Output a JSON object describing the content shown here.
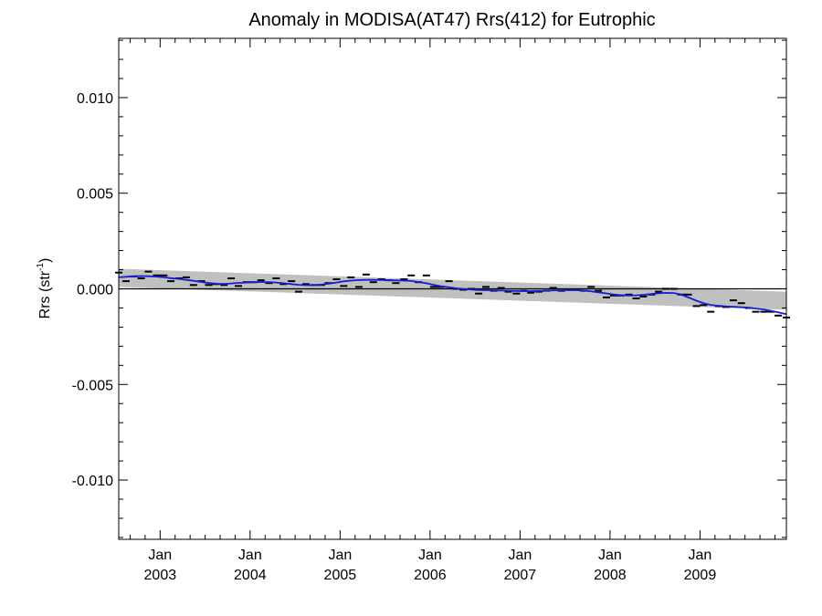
{
  "chart_data": {
    "type": "line",
    "title": "Anomaly in MODISA(AT47) Rrs(412) for Eutrophic",
    "ylabel": {
      "text": "Rrs (str",
      "superscript": "-1",
      "close": ")"
    },
    "xlabel": "",
    "xlim": [
      2002.54,
      2009.96
    ],
    "ylim": [
      -0.0131,
      0.0131
    ],
    "yticks": [
      {
        "value": 0.01,
        "label": "0.010"
      },
      {
        "value": 0.005,
        "label": "0.005"
      },
      {
        "value": 0.0,
        "label": "0.000"
      },
      {
        "value": -0.005,
        "label": "-0.005"
      },
      {
        "value": -0.01,
        "label": "-0.010"
      }
    ],
    "xticks": [
      {
        "value": 2003.0,
        "month": "Jan",
        "year": "2003"
      },
      {
        "value": 2004.0,
        "month": "Jan",
        "year": "2004"
      },
      {
        "value": 2005.0,
        "month": "Jan",
        "year": "2005"
      },
      {
        "value": 2006.0,
        "month": "Jan",
        "year": "2006"
      },
      {
        "value": 2007.0,
        "month": "Jan",
        "year": "2007"
      },
      {
        "value": 2008.0,
        "month": "Jan",
        "year": "2008"
      },
      {
        "value": 2009.0,
        "month": "Jan",
        "year": "2009"
      }
    ],
    "reference_line": 0.0,
    "series": [
      {
        "style": "monthly-markers",
        "color": "#000000",
        "points": [
          [
            2002.54,
            0.00085
          ],
          [
            2002.62,
            0.0004
          ],
          [
            2002.71,
            0.00065
          ],
          [
            2002.79,
            0.00055
          ],
          [
            2002.87,
            0.0009
          ],
          [
            2002.96,
            0.0007
          ],
          [
            2003.04,
            0.0007
          ],
          [
            2003.12,
            0.0004
          ],
          [
            2003.21,
            0.00055
          ],
          [
            2003.29,
            0.0006
          ],
          [
            2003.37,
            0.0002
          ],
          [
            2003.46,
            0.0004
          ],
          [
            2003.54,
            0.0002
          ],
          [
            2003.62,
            0.00025
          ],
          [
            2003.71,
            0.0002
          ],
          [
            2003.79,
            0.00055
          ],
          [
            2003.87,
            0.00015
          ],
          [
            2003.96,
            0.00035
          ],
          [
            2004.04,
            0.00035
          ],
          [
            2004.12,
            0.00045
          ],
          [
            2004.21,
            0.0003
          ],
          [
            2004.29,
            0.00055
          ],
          [
            2004.37,
            0.00025
          ],
          [
            2004.46,
            0.0004
          ],
          [
            2004.54,
            -0.00015
          ],
          [
            2004.62,
            0.00025
          ],
          [
            2004.71,
            0.0002
          ],
          [
            2004.79,
            0.0002
          ],
          [
            2004.87,
            0.0003
          ],
          [
            2004.96,
            0.0005
          ],
          [
            2005.04,
            0.00015
          ],
          [
            2005.12,
            0.0006
          ],
          [
            2005.21,
            0.0001
          ],
          [
            2005.29,
            0.00075
          ],
          [
            2005.37,
            0.00035
          ],
          [
            2005.46,
            0.0005
          ],
          [
            2005.54,
            0.00045
          ],
          [
            2005.62,
            0.0003
          ],
          [
            2005.71,
            0.0005
          ],
          [
            2005.79,
            0.0007
          ],
          [
            2005.87,
            0.00035
          ],
          [
            2005.96,
            0.0007
          ],
          [
            2006.04,
            0.0001
          ],
          [
            2006.12,
            0.0001
          ],
          [
            2006.21,
            0.0004
          ],
          [
            2006.29,
            0.0
          ],
          [
            2006.37,
            -5e-05
          ],
          [
            2006.46,
            0.0
          ],
          [
            2006.54,
            -0.00025
          ],
          [
            2006.62,
            0.0001
          ],
          [
            2006.71,
            -0.0001
          ],
          [
            2006.79,
            5e-05
          ],
          [
            2006.87,
            -0.00015
          ],
          [
            2006.96,
            -0.00025
          ],
          [
            2007.04,
            -0.0001
          ],
          [
            2007.12,
            -0.0002
          ],
          [
            2007.21,
            -0.00015
          ],
          [
            2007.29,
            -0.0001
          ],
          [
            2007.37,
            5e-05
          ],
          [
            2007.46,
            -0.0001
          ],
          [
            2007.54,
            -5e-05
          ],
          [
            2007.62,
            -5e-05
          ],
          [
            2007.71,
            -0.0001
          ],
          [
            2007.79,
            0.0001
          ],
          [
            2007.87,
            -0.0001
          ],
          [
            2007.96,
            -0.00045
          ],
          [
            2008.04,
            -0.00035
          ],
          [
            2008.12,
            -0.00035
          ],
          [
            2008.21,
            -0.0003
          ],
          [
            2008.29,
            -0.0005
          ],
          [
            2008.37,
            -0.0004
          ],
          [
            2008.46,
            -0.0003
          ],
          [
            2008.54,
            -0.00015
          ],
          [
            2008.62,
            0.0
          ],
          [
            2008.71,
            0.0
          ],
          [
            2008.79,
            -0.0003
          ],
          [
            2008.87,
            -0.0003
          ],
          [
            2008.96,
            -0.0009
          ],
          [
            2009.04,
            -0.00085
          ],
          [
            2009.12,
            -0.0012
          ],
          [
            2009.21,
            -0.0009
          ],
          [
            2009.29,
            -0.00095
          ],
          [
            2009.37,
            -0.0006
          ],
          [
            2009.46,
            -0.00075
          ],
          [
            2009.54,
            -0.001
          ],
          [
            2009.62,
            -0.0012
          ],
          [
            2009.71,
            -0.0012
          ],
          [
            2009.79,
            -0.0012
          ],
          [
            2009.87,
            -0.0014
          ],
          [
            2009.96,
            -0.0015
          ]
        ]
      },
      {
        "style": "smoothed-line",
        "color": "#1a1adb",
        "points": [
          [
            2002.54,
            0.0006
          ],
          [
            2002.62,
            0.00063
          ],
          [
            2002.71,
            0.00066
          ],
          [
            2002.79,
            0.00067
          ],
          [
            2002.87,
            0.00066
          ],
          [
            2002.96,
            0.00064
          ],
          [
            2003.04,
            0.0006
          ],
          [
            2003.12,
            0.00056
          ],
          [
            2003.21,
            0.00052
          ],
          [
            2003.29,
            0.00047
          ],
          [
            2003.37,
            0.00042
          ],
          [
            2003.46,
            0.00036
          ],
          [
            2003.54,
            0.0003
          ],
          [
            2003.62,
            0.00027
          ],
          [
            2003.71,
            0.00026
          ],
          [
            2003.79,
            0.00028
          ],
          [
            2003.87,
            0.00031
          ],
          [
            2003.96,
            0.00033
          ],
          [
            2004.04,
            0.00035
          ],
          [
            2004.12,
            0.00036
          ],
          [
            2004.21,
            0.00035
          ],
          [
            2004.29,
            0.00033
          ],
          [
            2004.37,
            0.00029
          ],
          [
            2004.46,
            0.00025
          ],
          [
            2004.54,
            0.00021
          ],
          [
            2004.62,
            0.00019
          ],
          [
            2004.71,
            0.00019
          ],
          [
            2004.79,
            0.00022
          ],
          [
            2004.87,
            0.00027
          ],
          [
            2004.96,
            0.00033
          ],
          [
            2005.04,
            0.00039
          ],
          [
            2005.12,
            0.00043
          ],
          [
            2005.21,
            0.00046
          ],
          [
            2005.29,
            0.00047
          ],
          [
            2005.37,
            0.00047
          ],
          [
            2005.46,
            0.00046
          ],
          [
            2005.54,
            0.00045
          ],
          [
            2005.62,
            0.00044
          ],
          [
            2005.71,
            0.00043
          ],
          [
            2005.79,
            0.00041
          ],
          [
            2005.87,
            0.00036
          ],
          [
            2005.96,
            0.00029
          ],
          [
            2006.04,
            0.00021
          ],
          [
            2006.12,
            0.00014
          ],
          [
            2006.21,
            8e-05
          ],
          [
            2006.29,
            3e-05
          ],
          [
            2006.37,
            -1e-05
          ],
          [
            2006.46,
            -4e-05
          ],
          [
            2006.54,
            -6e-05
          ],
          [
            2006.62,
            -7e-05
          ],
          [
            2006.71,
            -8e-05
          ],
          [
            2006.79,
            -9e-05
          ],
          [
            2006.87,
            -0.0001
          ],
          [
            2006.96,
            -0.00011
          ],
          [
            2007.04,
            -0.00012
          ],
          [
            2007.12,
            -0.00012
          ],
          [
            2007.21,
            -0.00011
          ],
          [
            2007.29,
            -0.0001
          ],
          [
            2007.37,
            -8e-05
          ],
          [
            2007.46,
            -7e-05
          ],
          [
            2007.54,
            -6e-05
          ],
          [
            2007.62,
            -7e-05
          ],
          [
            2007.71,
            -9e-05
          ],
          [
            2007.79,
            -0.00013
          ],
          [
            2007.87,
            -0.00018
          ],
          [
            2007.96,
            -0.00024
          ],
          [
            2008.04,
            -0.00029
          ],
          [
            2008.12,
            -0.00033
          ],
          [
            2008.21,
            -0.00035
          ],
          [
            2008.29,
            -0.00034
          ],
          [
            2008.37,
            -0.00031
          ],
          [
            2008.46,
            -0.00027
          ],
          [
            2008.54,
            -0.00023
          ],
          [
            2008.62,
            -0.00021
          ],
          [
            2008.71,
            -0.00022
          ],
          [
            2008.79,
            -0.0003
          ],
          [
            2008.87,
            -0.00045
          ],
          [
            2008.96,
            -0.00062
          ],
          [
            2009.04,
            -0.00075
          ],
          [
            2009.12,
            -0.00084
          ],
          [
            2009.21,
            -0.00089
          ],
          [
            2009.29,
            -0.00092
          ],
          [
            2009.37,
            -0.00094
          ],
          [
            2009.46,
            -0.00096
          ],
          [
            2009.54,
            -0.00099
          ],
          [
            2009.62,
            -0.00103
          ],
          [
            2009.71,
            -0.00108
          ],
          [
            2009.79,
            -0.00115
          ],
          [
            2009.87,
            -0.00123
          ],
          [
            2009.96,
            -0.00132
          ]
        ]
      },
      {
        "style": "confidence-band",
        "color": "#c0c0c0",
        "x": [
          2002.54,
          2009.96
        ],
        "upper": [
          0.00105,
          -0.00015
        ],
        "lower": [
          0.0001,
          -0.0011
        ]
      }
    ],
    "grid": false,
    "legend": "none"
  }
}
